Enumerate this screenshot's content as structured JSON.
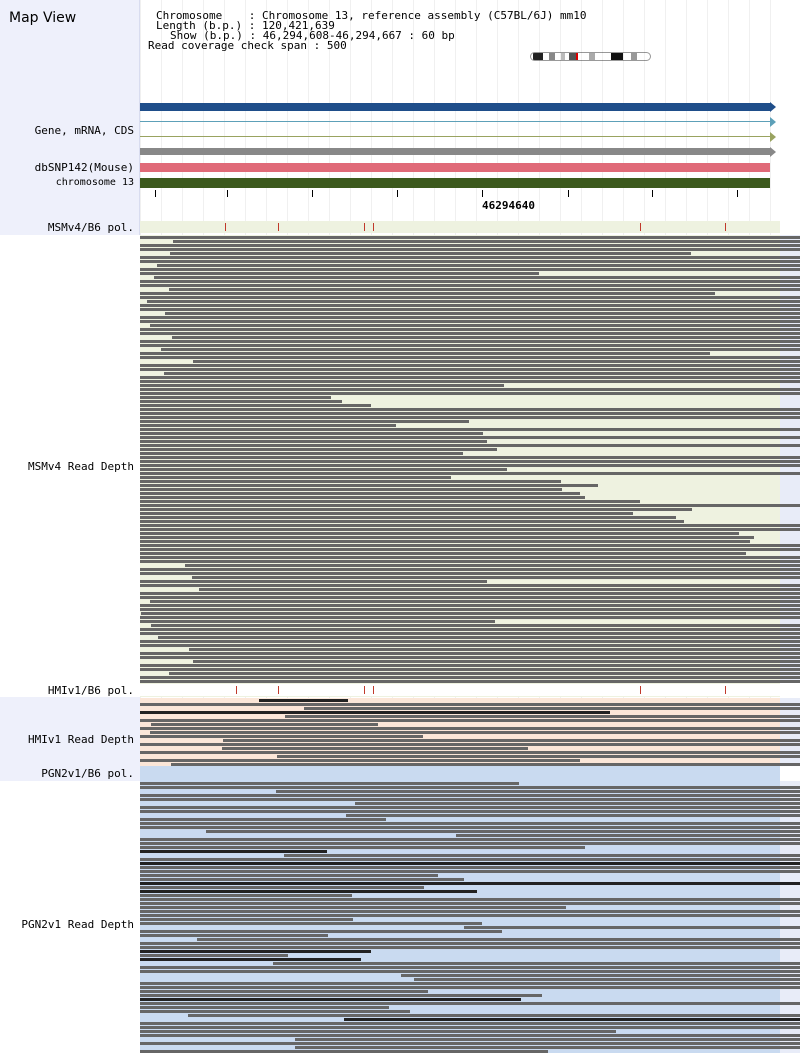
{
  "title": "Map View",
  "info": {
    "chromosome_label": "Chromosome",
    "chromosome_value": "Chromosome 13, reference assembly (C57BL/6J) mm10",
    "length_label": "Length (b.p.)",
    "length_value": "120,421,639",
    "show_label": "Show (b.p.)",
    "show_value": "46,294,608-46,294,667 : 60 bp",
    "coverage_label": "Read coverage check span",
    "coverage_value": "500"
  },
  "tracks": {
    "gene": "Gene, mRNA, CDS",
    "dbsnp": "dbSNP142(Mouse)",
    "chromosome": "chromosome 13",
    "msm_pol": "MSMv4/B6 pol.",
    "msm_depth": "MSMv4 Read Depth",
    "hmi_pol": "HMIv1/B6 pol.",
    "hmi_depth": "HMIv1 Read Depth",
    "pgn_pol": "PGN2v1/B6 pol.",
    "pgn_depth": "PGN2v1 Read Depth"
  },
  "ruler_position": "46294640",
  "colors": {
    "gene_bar": "#1f4e8a",
    "snp_bar": "#e06a78",
    "chrom_bar": "#3d5a1e",
    "read": "#666666",
    "read_dark": "#222222",
    "msm_bg": "#eef2e0",
    "hmi_bg": "#fbe6d8",
    "pgn_bg": "#c9daf0",
    "sidebar_bg": "#eef0fb"
  }
}
